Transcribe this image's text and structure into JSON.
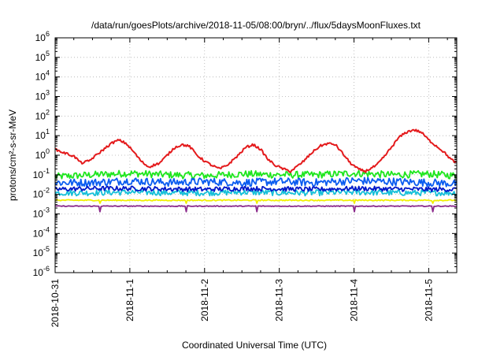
{
  "chart_data": {
    "type": "line",
    "title": "/data/run/goesPlots/archive/2018-11-05/08:00/bryn/../flux/5daysMoonFluxes.txt",
    "xlabel": "Coordinated Universal Time (UTC)",
    "ylabel": "protons/cm²-s-sr-MeV",
    "yscale": "log",
    "ylim": [
      1e-06,
      1000000.0
    ],
    "xlim_days": [
      0,
      5.375
    ],
    "x_ticks": [
      "2018-10-31",
      "2018-11-1",
      "2018-11-2",
      "2018-11-3",
      "2018-11-4",
      "2018-11-5"
    ],
    "y_ticks": [
      {
        "base": "10",
        "exp": "6"
      },
      {
        "base": "10",
        "exp": "5"
      },
      {
        "base": "10",
        "exp": "4"
      },
      {
        "base": "10",
        "exp": "3"
      },
      {
        "base": "10",
        "exp": "2"
      },
      {
        "base": "10",
        "exp": "1"
      },
      {
        "base": "10",
        "exp": "0"
      },
      {
        "base": "10",
        "exp": "-1"
      },
      {
        "base": "10",
        "exp": "-2"
      },
      {
        "base": "10",
        "exp": "-3"
      },
      {
        "base": "10",
        "exp": "-4"
      },
      {
        "base": "10",
        "exp": "-5"
      },
      {
        "base": "10",
        "exp": "-6"
      }
    ],
    "grid": true,
    "series": [
      {
        "color": "#e41a1c",
        "x": [
          0,
          0.1,
          0.25,
          0.35,
          0.45,
          0.55,
          0.65,
          0.75,
          0.85,
          0.95,
          1.05,
          1.15,
          1.25,
          1.4,
          1.5,
          1.6,
          1.7,
          1.8,
          1.9,
          2.0,
          2.1,
          2.2,
          2.3,
          2.45,
          2.55,
          2.65,
          2.75,
          2.85,
          2.95,
          3.05,
          3.15,
          3.3,
          3.45,
          3.55,
          3.65,
          3.75,
          3.85,
          3.95,
          4.05,
          4.15,
          4.3,
          4.4,
          4.5,
          4.6,
          4.7,
          4.8,
          4.9,
          5.0,
          5.1,
          5.2,
          5.3,
          5.375
        ],
        "y": [
          2.0,
          1.4,
          0.9,
          0.4,
          0.5,
          1.0,
          2.0,
          4.0,
          6.0,
          4.0,
          1.5,
          0.5,
          0.25,
          0.4,
          1.0,
          2.5,
          3.5,
          2.8,
          1.0,
          0.5,
          0.3,
          0.2,
          0.3,
          1.0,
          2.5,
          3.5,
          2.0,
          0.6,
          0.3,
          0.2,
          0.15,
          0.4,
          1.5,
          3.0,
          4.0,
          3.5,
          1.2,
          0.4,
          0.2,
          0.15,
          0.3,
          0.8,
          2.5,
          8.0,
          15.0,
          20.0,
          15.0,
          6.0,
          3.0,
          1.5,
          0.6,
          0.4
        ]
      },
      {
        "color": "#1ee61e",
        "x": [
          0,
          0.5,
          1.0,
          1.5,
          2.0,
          2.5,
          3.0,
          3.5,
          4.0,
          4.5,
          5.0,
          5.375
        ],
        "y": [
          0.08,
          0.1,
          0.12,
          0.1,
          0.09,
          0.11,
          0.1,
          0.1,
          0.12,
          0.1,
          0.11,
          0.09
        ]
      },
      {
        "color": "#0a5cf0",
        "x": [
          0,
          0.5,
          1.0,
          1.5,
          2.0,
          2.5,
          3.0,
          3.5,
          4.0,
          4.5,
          5.0,
          5.375
        ],
        "y": [
          0.04,
          0.04,
          0.05,
          0.04,
          0.045,
          0.04,
          0.045,
          0.04,
          0.05,
          0.045,
          0.04,
          0.035
        ]
      },
      {
        "color": "#16c0d8",
        "x": [
          0,
          0.5,
          1.0,
          1.5,
          2.0,
          2.5,
          3.0,
          3.5,
          4.0,
          4.5,
          5.0,
          5.375
        ],
        "y": [
          0.012,
          0.012,
          0.013,
          0.012,
          0.012,
          0.013,
          0.012,
          0.012,
          0.013,
          0.012,
          0.012,
          0.012
        ]
      },
      {
        "color": "#0018c8",
        "x": [
          0,
          0.5,
          1.0,
          1.5,
          2.0,
          2.5,
          3.0,
          3.5,
          4.0,
          4.5,
          5.0,
          5.375
        ],
        "y": [
          0.018,
          0.02,
          0.02,
          0.019,
          0.018,
          0.02,
          0.019,
          0.018,
          0.02,
          0.019,
          0.018,
          0.018
        ]
      },
      {
        "color": "#f0f000",
        "x": [
          0,
          0.5,
          1.0,
          1.5,
          2.0,
          2.5,
          3.0,
          3.5,
          4.0,
          4.5,
          5.0,
          5.375
        ],
        "y": [
          0.005,
          0.005,
          0.005,
          0.005,
          0.005,
          0.005,
          0.005,
          0.005,
          0.005,
          0.005,
          0.005,
          0.005
        ]
      },
      {
        "color": "#8b2a8b",
        "x": [
          0,
          0.5,
          1.0,
          1.5,
          2.0,
          2.5,
          3.0,
          3.5,
          4.0,
          4.5,
          5.0,
          5.375
        ],
        "y": [
          0.0025,
          0.0025,
          0.0025,
          0.0025,
          0.0025,
          0.0025,
          0.0025,
          0.0025,
          0.0025,
          0.0025,
          0.0025,
          0.0025
        ],
        "dips_x": [
          0.6,
          1.75,
          2.7,
          4.0,
          5.05
        ],
        "dip_y": 0.0013
      }
    ]
  }
}
